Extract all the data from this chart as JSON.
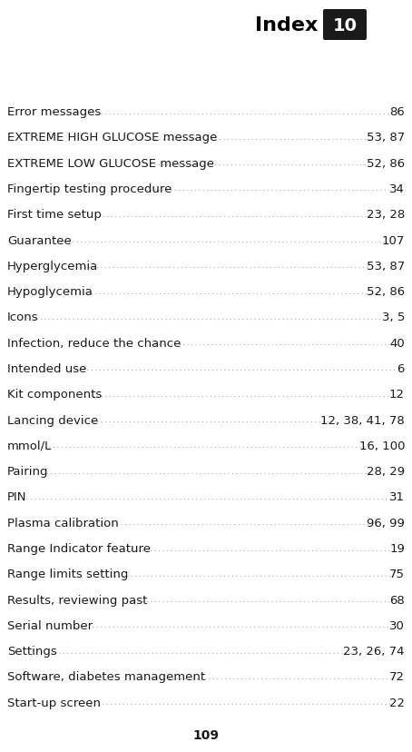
{
  "title": "Index",
  "chapter_num": "10",
  "page_num": "109",
  "entries": [
    {
      "label": "Error messages",
      "page": "86",
      "bold": false
    },
    {
      "label": "EXTREME HIGH GLUCOSE message",
      "page": "53, 87",
      "bold": false
    },
    {
      "label": "EXTREME LOW GLUCOSE message",
      "page": "52, 86",
      "bold": false
    },
    {
      "label": "Fingertip testing procedure",
      "page": "34",
      "bold": false
    },
    {
      "label": "First time setup",
      "page": "23, 28",
      "bold": false
    },
    {
      "label": "Guarantee",
      "page": "107",
      "bold": false
    },
    {
      "label": "Hyperglycemia",
      "page": "53, 87",
      "bold": false
    },
    {
      "label": "Hypoglycemia",
      "page": "52, 86",
      "bold": false
    },
    {
      "label": "Icons",
      "page": "3, 5",
      "bold": false
    },
    {
      "label": "Infection, reduce the chance",
      "page": "40",
      "bold": false
    },
    {
      "label": "Intended use",
      "page": "6",
      "bold": false
    },
    {
      "label": "Kit components",
      "page": "12",
      "bold": false
    },
    {
      "label": "Lancing device",
      "page": "12, 38, 41, 78",
      "bold": false
    },
    {
      "label": "mmol/L",
      "page": "16, 100",
      "bold": false
    },
    {
      "label": "Pairing",
      "page": "28, 29",
      "bold": false
    },
    {
      "label": "PIN",
      "page": "31",
      "bold": false
    },
    {
      "label": "Plasma calibration",
      "page": "96, 99",
      "bold": false
    },
    {
      "label": "Range Indicator feature",
      "page": "19",
      "bold": false
    },
    {
      "label": "Range limits setting",
      "page": "75",
      "bold": false
    },
    {
      "label": "Results, reviewing past",
      "page": "68",
      "bold": false
    },
    {
      "label": "Serial number",
      "page": "30",
      "bold": false
    },
    {
      "label": "Settings",
      "page": "23, 26, 74",
      "bold": false
    },
    {
      "label": "Software, diabetes management",
      "page": "72",
      "bold": false
    },
    {
      "label": "Start-up screen",
      "page": "22",
      "bold": false
    }
  ],
  "bg_color": "#ffffff",
  "text_color": "#1a1a1a",
  "title_color": "#000000",
  "badge_color": "#1a1a1a",
  "badge_text_color": "#ffffff",
  "dot_color": "#aaaaaa",
  "entry_font_size": 9.5,
  "title_font_size": 16,
  "badge_font_size": 14,
  "page_num_font_size": 10
}
